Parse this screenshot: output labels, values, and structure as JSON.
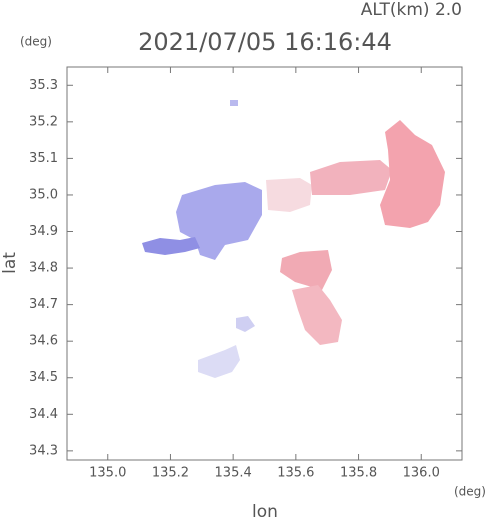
{
  "chart_data": {
    "type": "map",
    "title": "2021/07/05 16:16:44",
    "subtitle": "ALT(km) 2.0",
    "xlabel": "lon",
    "ylabel": "lat",
    "xunit": "(deg)",
    "yunit": "(deg)",
    "xlim": [
      134.87,
      136.13
    ],
    "ylim": [
      34.275,
      35.35
    ],
    "xticks": [
      {
        "value": 135,
        "label": "135.0"
      },
      135.2,
      135.4,
      135.6,
      135.8,
      {
        "value": 136,
        "label": "136.0"
      }
    ],
    "yticks": [
      34.3,
      34.4,
      34.5,
      34.6,
      34.7,
      34.8,
      34.9,
      {
        "value": 35,
        "label": "35.0"
      },
      35.1,
      35.2,
      35.3
    ]
  }
}
